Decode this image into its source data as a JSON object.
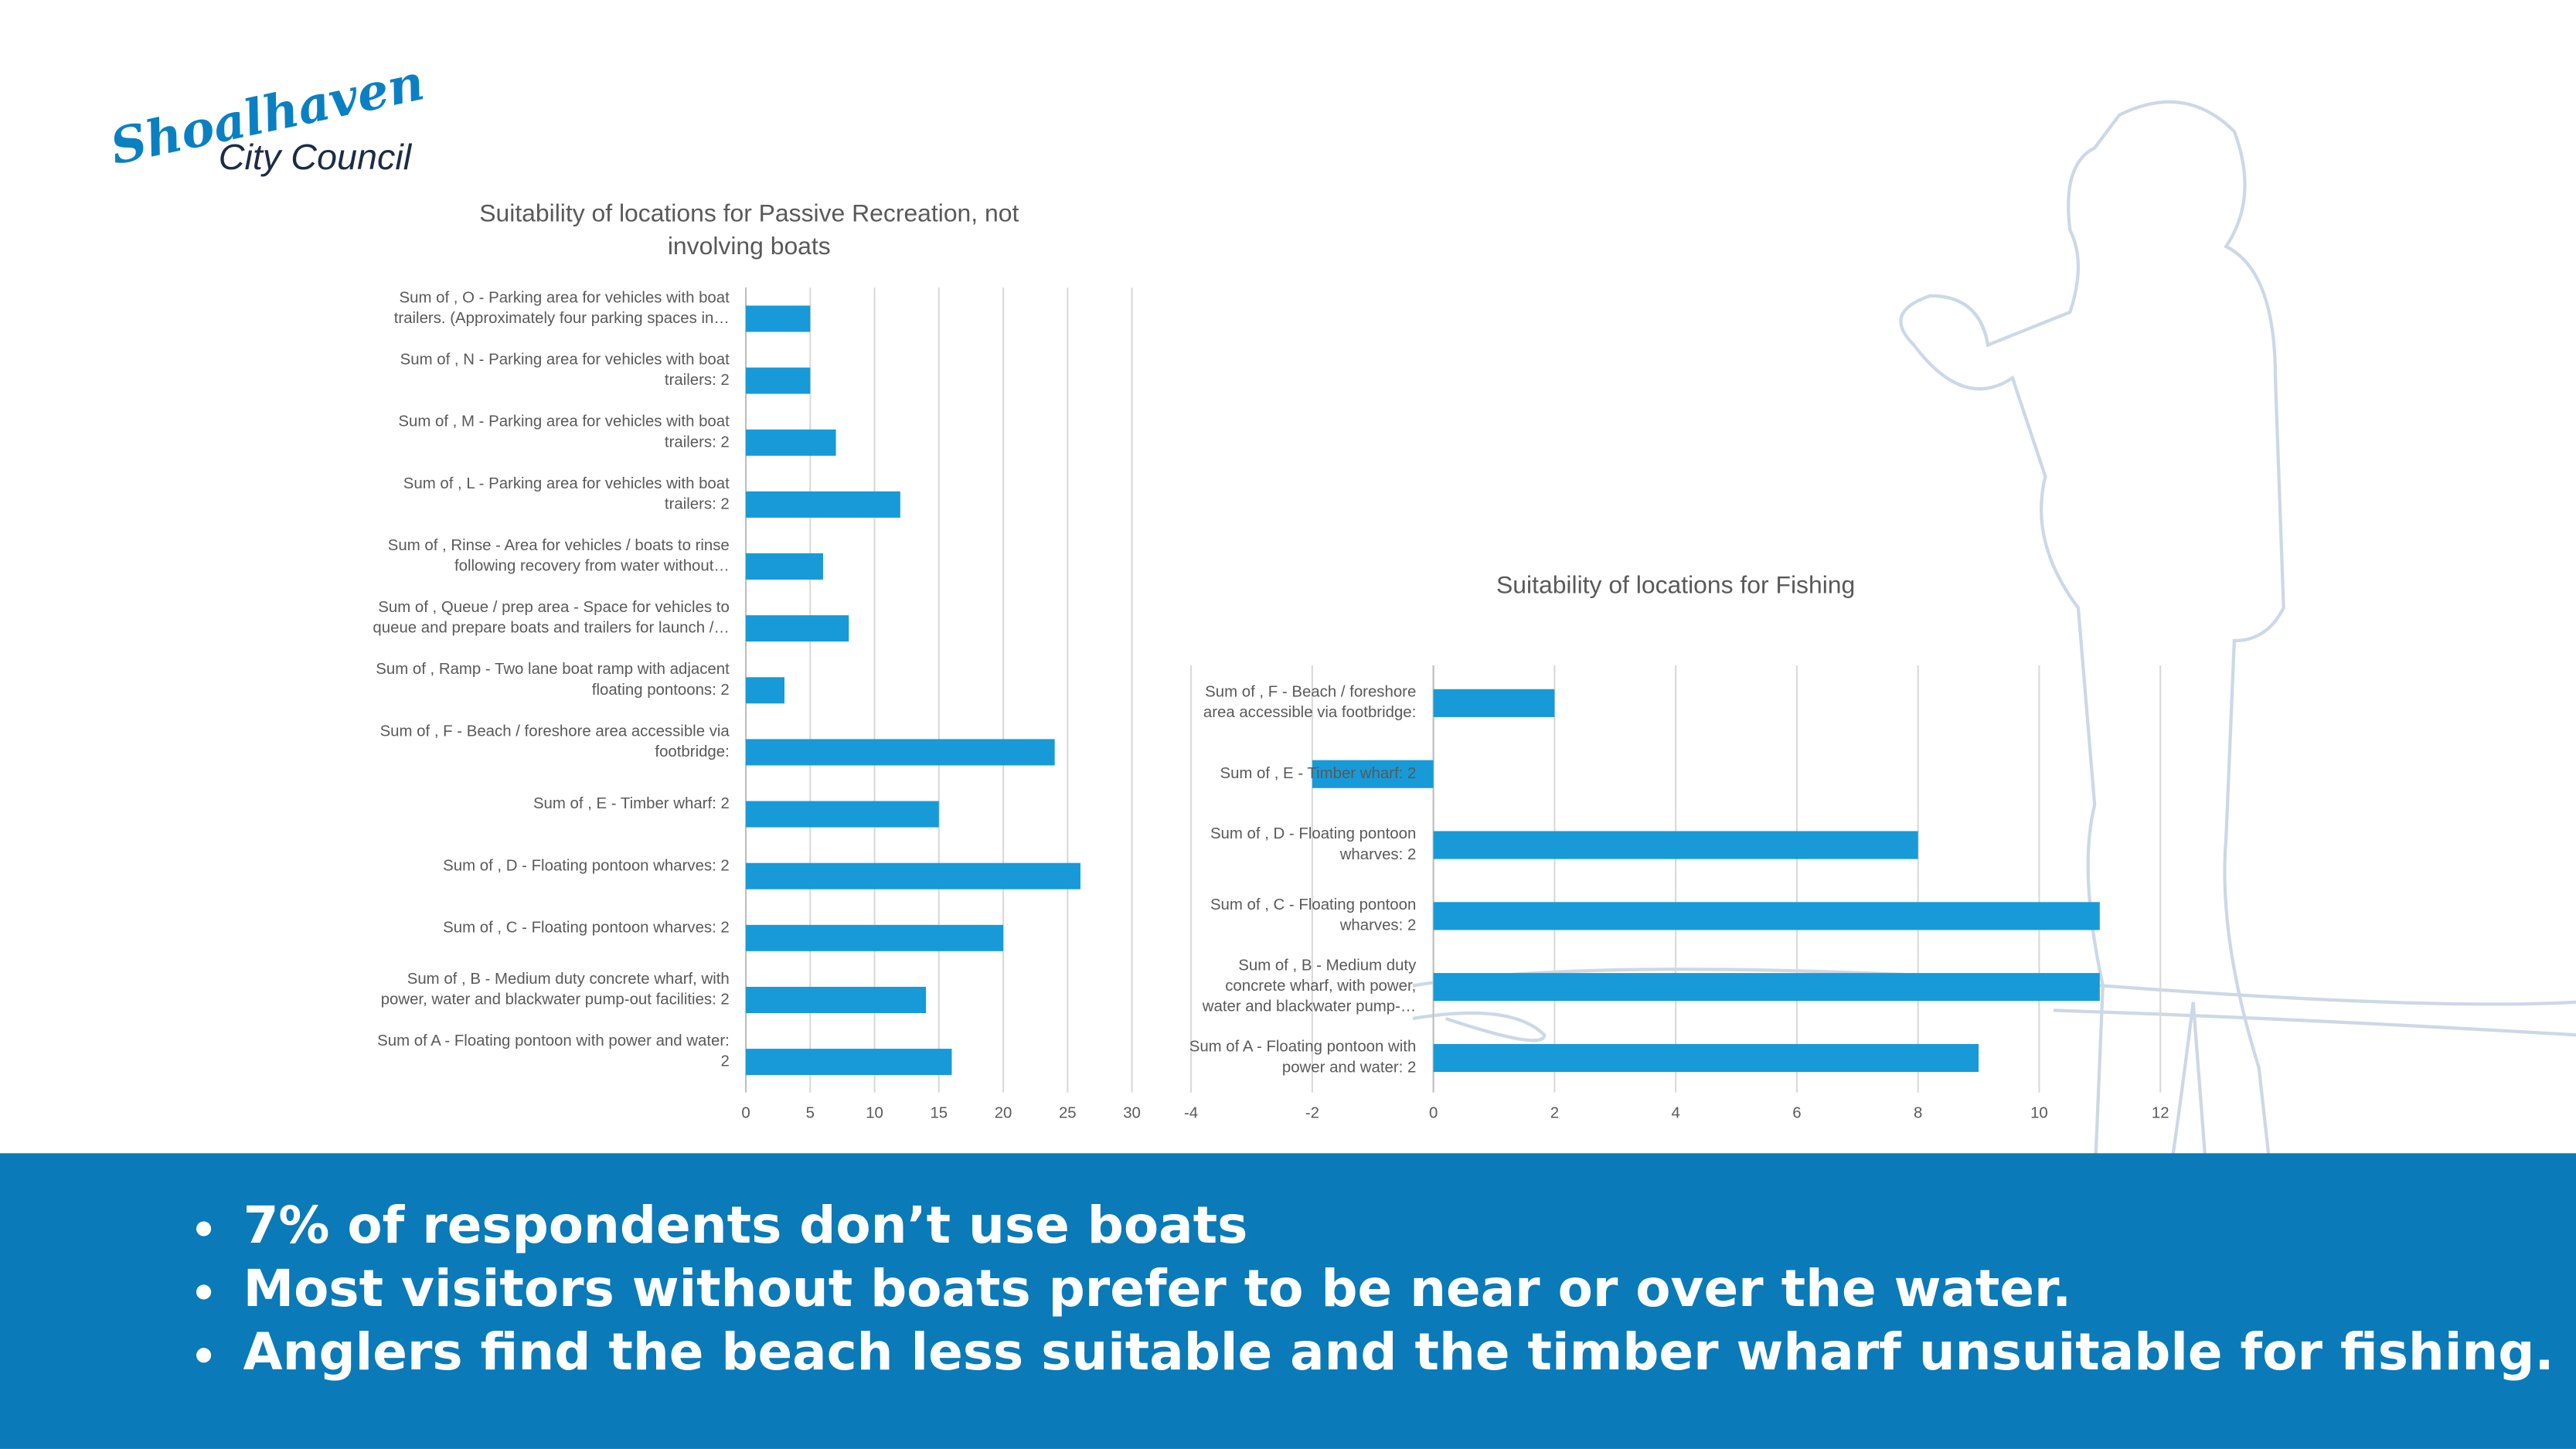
{
  "logo": {
    "line1": "Shoalhaven",
    "line2": "City Council"
  },
  "chart_data": [
    {
      "type": "bar",
      "orientation": "horizontal",
      "title": "Suitability of locations for Passive Recreation, not\ninvolving boats",
      "categories": [
        "Sum of , O - Parking area for vehicles with boat\ntrailers. (Approximately four parking spaces in…",
        "Sum of , N - Parking area for vehicles with boat\ntrailers: 2",
        "Sum of , M - Parking area for vehicles with boat\ntrailers: 2",
        "Sum of , L - Parking area for vehicles with boat\ntrailers: 2",
        "Sum of , Rinse -  Area for vehicles / boats to rinse\nfollowing recovery from water without…",
        "Sum of , Queue / prep area - Space for vehicles to\nqueue and prepare boats and trailers for launch /…",
        "Sum of  , Ramp - Two lane boat ramp with adjacent\nfloating pontoons: 2",
        "Sum of , F - Beach / foreshore area accessible via\nfootbridge:",
        "Sum of  , E - Timber wharf: 2",
        "Sum of , D - Floating pontoon wharves: 2",
        "Sum of , C - Floating pontoon wharves: 2",
        "Sum of , B - Medium duty concrete wharf, with\npower, water and blackwater pump-out facilities: 2",
        "Sum of A - Floating pontoon with power and water:\n2"
      ],
      "values": [
        5,
        5,
        7,
        12,
        6,
        8,
        3,
        24,
        15,
        26,
        20,
        14,
        16
      ],
      "color": "#179ad7",
      "xlim": [
        0,
        30
      ],
      "xticks": [
        0,
        5,
        10,
        15,
        20,
        25,
        30
      ],
      "grid": true
    },
    {
      "type": "bar",
      "orientation": "horizontal",
      "title": "Suitability of locations for Fishing",
      "categories": [
        "Sum of , F - Beach / foreshore\narea accessible via footbridge:",
        "Sum of  , E - Timber wharf: 2",
        "Sum of , D - Floating pontoon\nwharves: 2",
        "Sum of , C - Floating pontoon\nwharves: 2",
        "Sum of , B - Medium duty\nconcrete wharf, with power,\nwater and blackwater pump-…",
        "Sum of A - Floating pontoon with\npower and water: 2"
      ],
      "values": [
        2,
        -2,
        8,
        11,
        11,
        9
      ],
      "color": "#179ad7",
      "xlim": [
        -4,
        12
      ],
      "xticks": [
        -4,
        -2,
        0,
        2,
        4,
        6,
        8,
        10,
        12
      ],
      "grid": true
    }
  ],
  "bullets": [
    "7% of respondents don’t use boats",
    "Most visitors without boats prefer to be near or over the water.",
    "Anglers find the beach less suitable and the timber wharf unsuitable for fishing."
  ]
}
